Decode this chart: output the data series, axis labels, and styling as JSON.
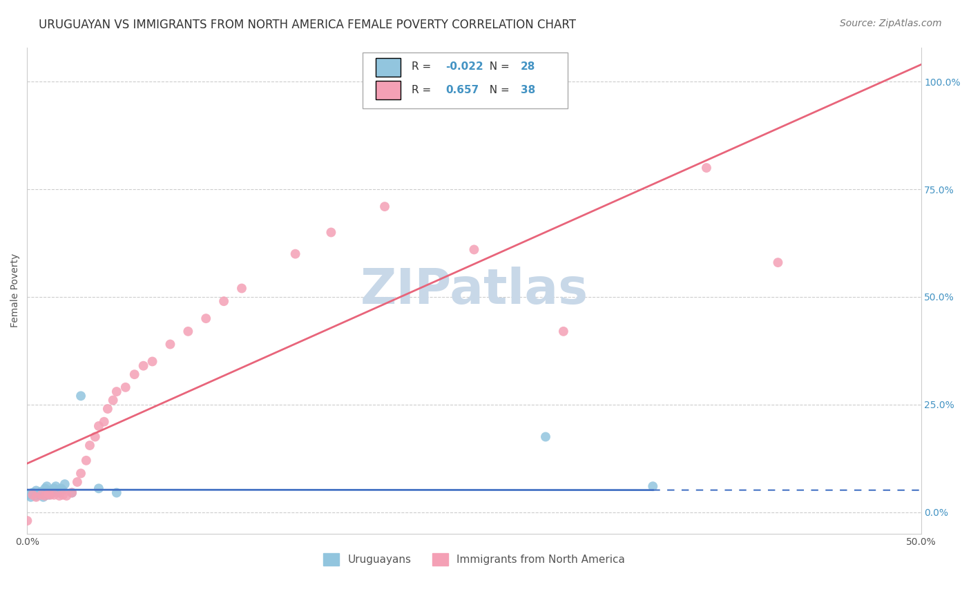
{
  "title": "URUGUAYAN VS IMMIGRANTS FROM NORTH AMERICA FEMALE POVERTY CORRELATION CHART",
  "source": "Source: ZipAtlas.com",
  "ylabel": "Female Poverty",
  "xlim": [
    0.0,
    0.5
  ],
  "ylim": [
    -0.05,
    1.08
  ],
  "yticks_right": [
    0.0,
    0.25,
    0.5,
    0.75,
    1.0
  ],
  "ytick_labels_right": [
    "0.0%",
    "25.0%",
    "50.0%",
    "75.0%",
    "100.0%"
  ],
  "blue_color": "#92C5DE",
  "pink_color": "#F4A0B5",
  "blue_line_color": "#4472C4",
  "pink_line_color": "#E8647A",
  "watermark": "ZIPatlas",
  "legend_R_blue": "-0.022",
  "legend_N_blue": "28",
  "legend_R_pink": "0.657",
  "legend_N_pink": "38",
  "blue_scatter_x": [
    0.0,
    0.002,
    0.003,
    0.005,
    0.005,
    0.007,
    0.008,
    0.008,
    0.009,
    0.01,
    0.01,
    0.011,
    0.012,
    0.013,
    0.014,
    0.015,
    0.016,
    0.017,
    0.018,
    0.019,
    0.02,
    0.021,
    0.025,
    0.03,
    0.04,
    0.05,
    0.29,
    0.35
  ],
  "blue_scatter_y": [
    0.04,
    0.035,
    0.045,
    0.038,
    0.05,
    0.04,
    0.042,
    0.048,
    0.035,
    0.045,
    0.055,
    0.06,
    0.04,
    0.05,
    0.045,
    0.055,
    0.06,
    0.05,
    0.045,
    0.055,
    0.05,
    0.065,
    0.045,
    0.27,
    0.055,
    0.045,
    0.175,
    0.06
  ],
  "pink_scatter_x": [
    0.0,
    0.003,
    0.005,
    0.008,
    0.01,
    0.012,
    0.013,
    0.015,
    0.018,
    0.02,
    0.022,
    0.025,
    0.028,
    0.03,
    0.033,
    0.035,
    0.038,
    0.04,
    0.043,
    0.045,
    0.048,
    0.05,
    0.055,
    0.06,
    0.065,
    0.07,
    0.08,
    0.09,
    0.1,
    0.11,
    0.12,
    0.15,
    0.17,
    0.2,
    0.25,
    0.3,
    0.38,
    0.42
  ],
  "pink_scatter_y": [
    -0.02,
    0.04,
    0.035,
    0.04,
    0.038,
    0.042,
    0.04,
    0.04,
    0.038,
    0.04,
    0.038,
    0.045,
    0.07,
    0.09,
    0.12,
    0.155,
    0.175,
    0.2,
    0.21,
    0.24,
    0.26,
    0.28,
    0.29,
    0.32,
    0.34,
    0.35,
    0.39,
    0.42,
    0.45,
    0.49,
    0.52,
    0.6,
    0.65,
    0.71,
    0.61,
    0.42,
    0.8,
    0.58
  ],
  "title_fontsize": 12,
  "source_fontsize": 10,
  "axis_label_fontsize": 10,
  "tick_fontsize": 10,
  "watermark_fontsize": 52,
  "watermark_color": "#C8D8E8",
  "background_color": "#FFFFFF",
  "grid_color": "#CCCCCC"
}
